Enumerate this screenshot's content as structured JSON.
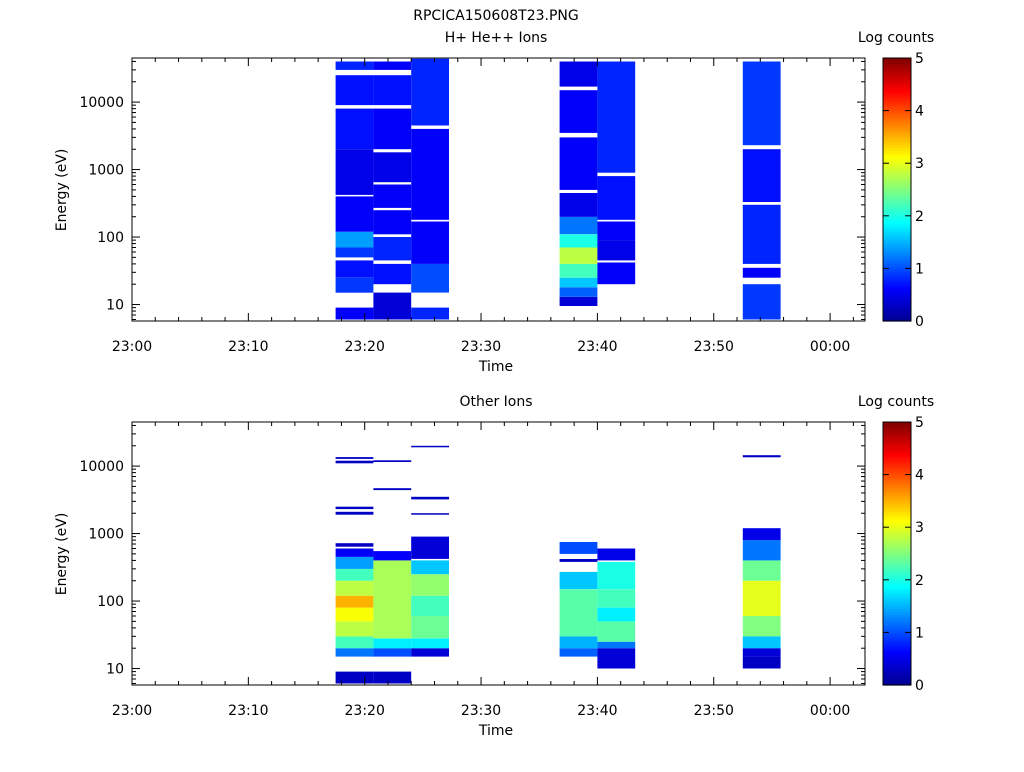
{
  "figure_title": "RPCICA150608T23.PNG",
  "colors": {
    "jet_stops": [
      "#00008f",
      "#0000ff",
      "#0080ff",
      "#00ffff",
      "#80ff80",
      "#ffff00",
      "#ff8000",
      "#ff0000",
      "#800000"
    ]
  },
  "chart_data": [
    {
      "type": "heatmap",
      "title": "H+ He++ Ions",
      "xlabel": "Time",
      "ylabel": "Energy (eV)",
      "x_scale": "time",
      "y_scale": "log",
      "xlim": [
        "23:00",
        "00:03"
      ],
      "ylim": [
        5.7,
        45000
      ],
      "x_ticks": [
        "23:00",
        "23:10",
        "23:20",
        "23:30",
        "23:40",
        "23:50",
        "00:00"
      ],
      "y_ticks": [
        "10",
        "100",
        "1000",
        "10000"
      ],
      "colorbar": {
        "label": "Log counts",
        "range": [
          0,
          5
        ],
        "ticks": [
          "0",
          "1",
          "2",
          "3",
          "4",
          "5"
        ]
      },
      "columns": [
        {
          "t_start": "23:17:30",
          "t_end": "23:20:45",
          "bands": [
            {
              "e_min": 6,
              "e_max": 9,
              "value": 0.6
            },
            {
              "e_min": 15,
              "e_max": 25,
              "value": 0.9
            },
            {
              "e_min": 25,
              "e_max": 45,
              "value": 0.7
            },
            {
              "e_min": 50,
              "e_max": 70,
              "value": 0.9
            },
            {
              "e_min": 70,
              "e_max": 120,
              "value": 1.4
            },
            {
              "e_min": 120,
              "e_max": 400,
              "value": 0.6
            },
            {
              "e_min": 420,
              "e_max": 2000,
              "value": 0.5
            },
            {
              "e_min": 2000,
              "e_max": 8000,
              "value": 0.7
            },
            {
              "e_min": 9000,
              "e_max": 25000,
              "value": 0.7
            },
            {
              "e_min": 30000,
              "e_max": 40000,
              "value": 0.8
            }
          ]
        },
        {
          "t_start": "23:20:45",
          "t_end": "23:24:00",
          "bands": [
            {
              "e_min": 6,
              "e_max": 15,
              "value": 0.4
            },
            {
              "e_min": 20,
              "e_max": 40,
              "value": 0.7
            },
            {
              "e_min": 45,
              "e_max": 100,
              "value": 0.8
            },
            {
              "e_min": 110,
              "e_max": 250,
              "value": 0.6
            },
            {
              "e_min": 270,
              "e_max": 600,
              "value": 0.6
            },
            {
              "e_min": 650,
              "e_max": 1800,
              "value": 0.5
            },
            {
              "e_min": 2000,
              "e_max": 8000,
              "value": 0.6
            },
            {
              "e_min": 9000,
              "e_max": 25000,
              "value": 0.7
            },
            {
              "e_min": 30000,
              "e_max": 40000,
              "value": 0.6
            }
          ]
        },
        {
          "t_start": "23:24:00",
          "t_end": "23:27:15",
          "bands": [
            {
              "e_min": 6,
              "e_max": 9,
              "value": 0.8
            },
            {
              "e_min": 15,
              "e_max": 40,
              "value": 1.0
            },
            {
              "e_min": 40,
              "e_max": 170,
              "value": 0.6
            },
            {
              "e_min": 180,
              "e_max": 4000,
              "value": 0.6
            },
            {
              "e_min": 4500,
              "e_max": 44000,
              "value": 0.8
            }
          ]
        },
        {
          "t_start": "23:36:45",
          "t_end": "23:40:00",
          "bands": [
            {
              "e_min": 9.5,
              "e_max": 13,
              "value": 0.4
            },
            {
              "e_min": 13,
              "e_max": 18,
              "value": 1.1
            },
            {
              "e_min": 18,
              "e_max": 25,
              "value": 1.6
            },
            {
              "e_min": 25,
              "e_max": 40,
              "value": 2.2
            },
            {
              "e_min": 40,
              "e_max": 70,
              "value": 2.8
            },
            {
              "e_min": 70,
              "e_max": 110,
              "value": 2.0
            },
            {
              "e_min": 110,
              "e_max": 200,
              "value": 1.2
            },
            {
              "e_min": 200,
              "e_max": 450,
              "value": 0.5
            },
            {
              "e_min": 500,
              "e_max": 3000,
              "value": 0.6
            },
            {
              "e_min": 3500,
              "e_max": 15000,
              "value": 0.6
            },
            {
              "e_min": 17000,
              "e_max": 40000,
              "value": 0.5
            }
          ]
        },
        {
          "t_start": "23:40:00",
          "t_end": "23:43:15",
          "bands": [
            {
              "e_min": 20,
              "e_max": 42,
              "value": 0.6
            },
            {
              "e_min": 45,
              "e_max": 90,
              "value": 0.5
            },
            {
              "e_min": 90,
              "e_max": 170,
              "value": 0.6
            },
            {
              "e_min": 180,
              "e_max": 800,
              "value": 0.7
            },
            {
              "e_min": 900,
              "e_max": 40000,
              "value": 0.8
            }
          ]
        },
        {
          "t_start": "23:52:30",
          "t_end": "23:55:45",
          "bands": [
            {
              "e_min": 6,
              "e_max": 20,
              "value": 0.9
            },
            {
              "e_min": 25,
              "e_max": 35,
              "value": 0.6
            },
            {
              "e_min": 40,
              "e_max": 300,
              "value": 0.8
            },
            {
              "e_min": 330,
              "e_max": 2000,
              "value": 0.7
            },
            {
              "e_min": 2300,
              "e_max": 40000,
              "value": 0.9
            }
          ]
        }
      ]
    },
    {
      "type": "heatmap",
      "title": "Other Ions",
      "xlabel": "Time",
      "ylabel": "Energy (eV)",
      "x_scale": "time",
      "y_scale": "log",
      "xlim": [
        "23:00",
        "00:03"
      ],
      "ylim": [
        5.7,
        45000
      ],
      "x_ticks": [
        "23:00",
        "23:10",
        "23:20",
        "23:30",
        "23:40",
        "23:50",
        "00:00"
      ],
      "y_ticks": [
        "10",
        "100",
        "1000",
        "10000"
      ],
      "colorbar": {
        "label": "Log counts",
        "range": [
          0,
          5
        ],
        "ticks": [
          "0",
          "1",
          "2",
          "3",
          "4",
          "5"
        ]
      },
      "columns": [
        {
          "t_start": "23:17:30",
          "t_end": "23:20:45",
          "bands": [
            {
              "e_min": 6,
              "e_max": 9,
              "value": 0.3
            },
            {
              "e_min": 15,
              "e_max": 20,
              "value": 1.2
            },
            {
              "e_min": 20,
              "e_max": 30,
              "value": 2.2
            },
            {
              "e_min": 30,
              "e_max": 50,
              "value": 2.8
            },
            {
              "e_min": 50,
              "e_max": 80,
              "value": 3.1
            },
            {
              "e_min": 80,
              "e_max": 120,
              "value": 3.5
            },
            {
              "e_min": 120,
              "e_max": 200,
              "value": 2.8
            },
            {
              "e_min": 200,
              "e_max": 300,
              "value": 2.2
            },
            {
              "e_min": 300,
              "e_max": 450,
              "value": 1.4
            },
            {
              "e_min": 450,
              "e_max": 600,
              "value": 0.6
            },
            {
              "e_min": 640,
              "e_max": 720,
              "value": 0.3
            },
            {
              "e_min": 1900,
              "e_max": 2100,
              "value": 0.3
            },
            {
              "e_min": 2300,
              "e_max": 2500,
              "value": 0.3
            },
            {
              "e_min": 11000,
              "e_max": 12000,
              "value": 0.3
            },
            {
              "e_min": 12800,
              "e_max": 13600,
              "value": 0.3
            }
          ]
        },
        {
          "t_start": "23:20:45",
          "t_end": "23:24:00",
          "bands": [
            {
              "e_min": 6,
              "e_max": 9,
              "value": 0.3
            },
            {
              "e_min": 15,
              "e_max": 20,
              "value": 1.0
            },
            {
              "e_min": 20,
              "e_max": 28,
              "value": 1.8
            },
            {
              "e_min": 28,
              "e_max": 400,
              "value": 2.7
            },
            {
              "e_min": 400,
              "e_max": 550,
              "value": 0.6
            },
            {
              "e_min": 4400,
              "e_max": 4700,
              "value": 0.3
            },
            {
              "e_min": 11500,
              "e_max": 12200,
              "value": 0.3
            }
          ]
        },
        {
          "t_start": "23:24:00",
          "t_end": "23:27:15",
          "bands": [
            {
              "e_min": 15,
              "e_max": 20,
              "value": 0.4
            },
            {
              "e_min": 20,
              "e_max": 28,
              "value": 1.8
            },
            {
              "e_min": 28,
              "e_max": 60,
              "value": 2.4
            },
            {
              "e_min": 60,
              "e_max": 120,
              "value": 2.2
            },
            {
              "e_min": 120,
              "e_max": 250,
              "value": 2.6
            },
            {
              "e_min": 250,
              "e_max": 400,
              "value": 1.6
            },
            {
              "e_min": 420,
              "e_max": 900,
              "value": 0.4
            },
            {
              "e_min": 1900,
              "e_max": 2000,
              "value": 0.3
            },
            {
              "e_min": 3200,
              "e_max": 3500,
              "value": 0.3
            },
            {
              "e_min": 19000,
              "e_max": 20000,
              "value": 0.3
            }
          ]
        },
        {
          "t_start": "23:36:45",
          "t_end": "23:40:00",
          "bands": [
            {
              "e_min": 15,
              "e_max": 20,
              "value": 1.1
            },
            {
              "e_min": 20,
              "e_max": 30,
              "value": 1.5
            },
            {
              "e_min": 30,
              "e_max": 150,
              "value": 2.3
            },
            {
              "e_min": 150,
              "e_max": 270,
              "value": 1.6
            },
            {
              "e_min": 380,
              "e_max": 420,
              "value": 0.3
            },
            {
              "e_min": 500,
              "e_max": 750,
              "value": 1.0
            }
          ]
        },
        {
          "t_start": "23:40:00",
          "t_end": "23:43:15",
          "bands": [
            {
              "e_min": 10,
              "e_max": 20,
              "value": 0.4
            },
            {
              "e_min": 20,
              "e_max": 25,
              "value": 1.2
            },
            {
              "e_min": 25,
              "e_max": 50,
              "value": 2.3
            },
            {
              "e_min": 50,
              "e_max": 80,
              "value": 1.8
            },
            {
              "e_min": 80,
              "e_max": 150,
              "value": 2.2
            },
            {
              "e_min": 150,
              "e_max": 380,
              "value": 2.0
            },
            {
              "e_min": 400,
              "e_max": 600,
              "value": 0.5
            }
          ]
        },
        {
          "t_start": "23:52:30",
          "t_end": "23:55:45",
          "bands": [
            {
              "e_min": 10,
              "e_max": 15,
              "value": 0.3
            },
            {
              "e_min": 15,
              "e_max": 20,
              "value": 0.4
            },
            {
              "e_min": 20,
              "e_max": 30,
              "value": 1.6
            },
            {
              "e_min": 30,
              "e_max": 60,
              "value": 2.5
            },
            {
              "e_min": 60,
              "e_max": 200,
              "value": 3.0
            },
            {
              "e_min": 200,
              "e_max": 400,
              "value": 2.4
            },
            {
              "e_min": 400,
              "e_max": 800,
              "value": 1.2
            },
            {
              "e_min": 800,
              "e_max": 1200,
              "value": 0.5
            },
            {
              "e_min": 13500,
              "e_max": 14500,
              "value": 0.3
            }
          ]
        }
      ]
    }
  ]
}
